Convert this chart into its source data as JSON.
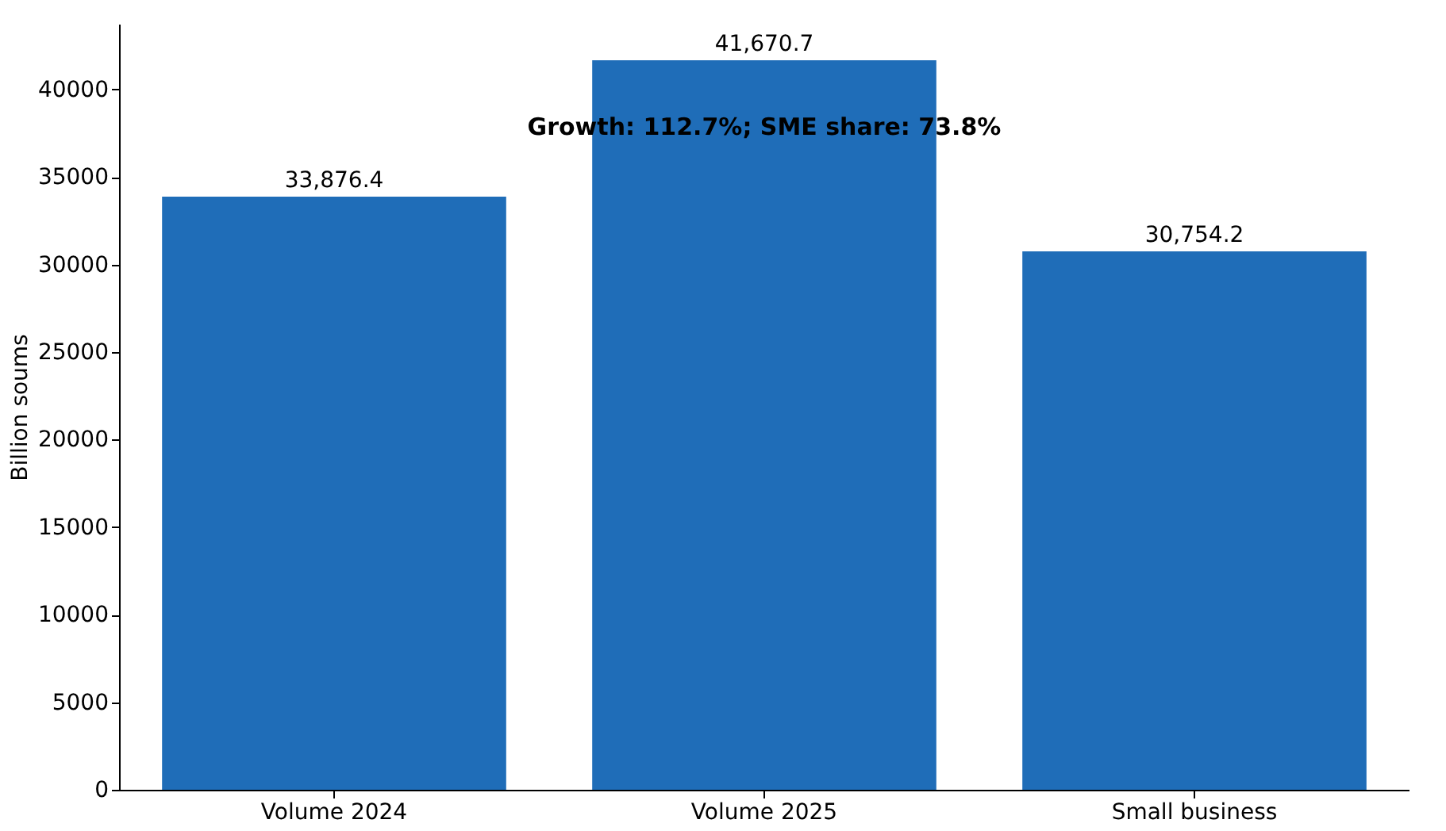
{
  "chart_data": {
    "type": "bar",
    "ylabel": "Billion soums",
    "categories": [
      "Volume 2024",
      "Volume 2025",
      "Small business"
    ],
    "values": [
      33876.4,
      41670.7,
      30754.2
    ],
    "value_labels": [
      "33,876.4",
      "41,670.7",
      "30,754.2"
    ],
    "color": "#1f6db8",
    "ylim": [
      0,
      43754
    ],
    "yticks": [
      0,
      5000,
      10000,
      15000,
      20000,
      25000,
      30000,
      35000,
      40000
    ],
    "grid": false,
    "annotations": [
      "Growth: 112.7%; SME share: 73.8%"
    ]
  }
}
